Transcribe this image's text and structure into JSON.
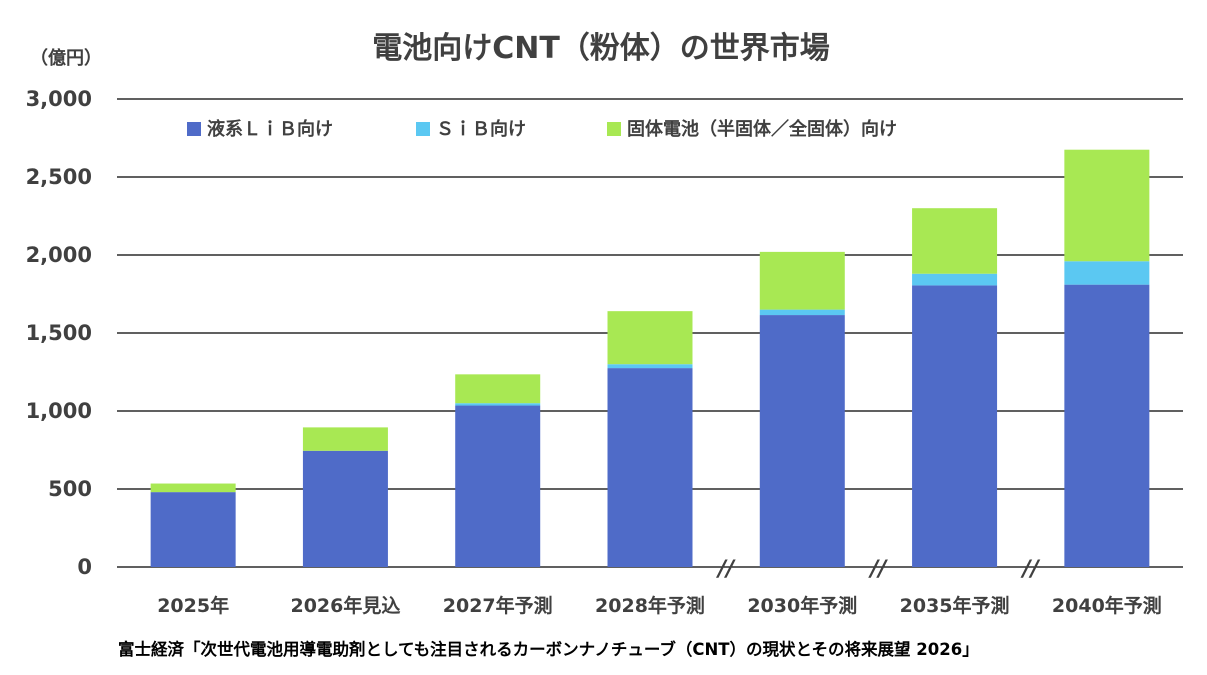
{
  "chart_data": {
    "type": "bar",
    "stacked": true,
    "title": "電池向けCNT（粉体）の世界市場",
    "unit_label": "（億円）",
    "ylim": [
      0,
      3000
    ],
    "yticks": [
      0,
      500,
      1000,
      1500,
      2000,
      2500,
      3000
    ],
    "ytick_labels": [
      "0",
      "500",
      "1,000",
      "1,500",
      "2,000",
      "2,500",
      "3,000"
    ],
    "grid": true,
    "legend_position": "top",
    "categories": [
      "2025年",
      "2026年見込",
      "2027年予測",
      "2028年予測",
      "2030年予測",
      "2035年予測",
      "2040年予測"
    ],
    "axis_breaks_after": [
      3,
      4,
      5
    ],
    "axis_break_label": "//",
    "series": [
      {
        "name": "液系ＬｉＢ向け",
        "color": "#4f6bc8",
        "values": [
          480,
          745,
          1035,
          1275,
          1615,
          1805,
          1810
        ]
      },
      {
        "name": "ＳｉＢ向け",
        "color": "#5bc8f2",
        "values": [
          0,
          0,
          15,
          25,
          35,
          75,
          150
        ]
      },
      {
        "name": "固体電池（半固体／全固体）向け",
        "color": "#a8e853",
        "values": [
          55,
          150,
          185,
          340,
          370,
          420,
          715
        ]
      }
    ],
    "source": "富士経済「次世代電池用導電助剤としても注目されるカーボンナノチューブ（CNT）の現状とその将来展望 2026」"
  }
}
